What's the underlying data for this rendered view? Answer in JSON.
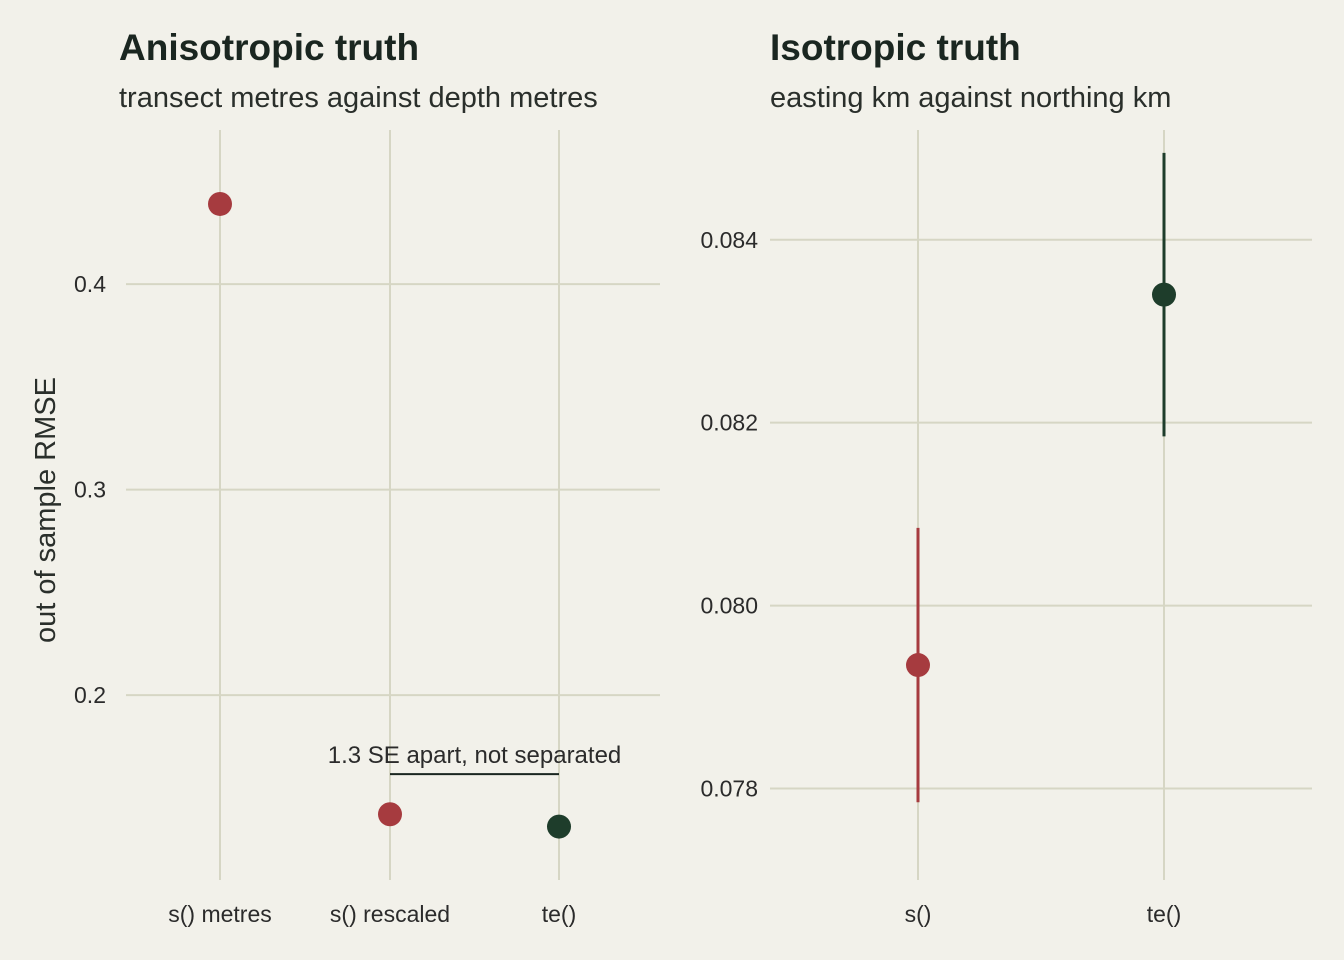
{
  "colors": {
    "background": "#f2f1ea",
    "red": "#a63b3f",
    "dark_green": "#1e3d2b",
    "grid": "#d6d6c4"
  },
  "ylabel": "out of sample RMSE",
  "chart_data": [
    {
      "type": "scatter",
      "title": "Anisotropic truth",
      "subtitle": "transect metres against depth metres",
      "categories": [
        "s() metres",
        "s() rescaled",
        "te()"
      ],
      "values": [
        0.439,
        0.142,
        0.136
      ],
      "point_colors": [
        "#a63b3f",
        "#a63b3f",
        "#1e3d2b"
      ],
      "ylabel": "out of sample RMSE",
      "ylim": [
        0.11,
        0.475
      ],
      "yticks": [
        0.2,
        0.3,
        0.4
      ],
      "ytick_labels": [
        "0.2",
        "0.3",
        "0.4"
      ],
      "grid": true,
      "annotation": {
        "text": "1.3 SE apart, not separated",
        "from_category": "s() rescaled",
        "to_category": "te()",
        "y": 0.1615
      }
    },
    {
      "type": "scatter",
      "title": "Isotropic truth",
      "subtitle": "easting km against northing km",
      "categories": [
        "s()",
        "te()"
      ],
      "values": [
        0.07935,
        0.0834
      ],
      "error_low": [
        0.07785,
        0.08185
      ],
      "error_high": [
        0.08085,
        0.08495
      ],
      "point_colors": [
        "#a63b3f",
        "#1e3d2b"
      ],
      "ylim": [
        0.077,
        0.0852
      ],
      "yticks": [
        0.078,
        0.08,
        0.082,
        0.084
      ],
      "ytick_labels": [
        "0.078",
        "0.080",
        "0.082",
        "0.084"
      ],
      "grid": true
    }
  ]
}
